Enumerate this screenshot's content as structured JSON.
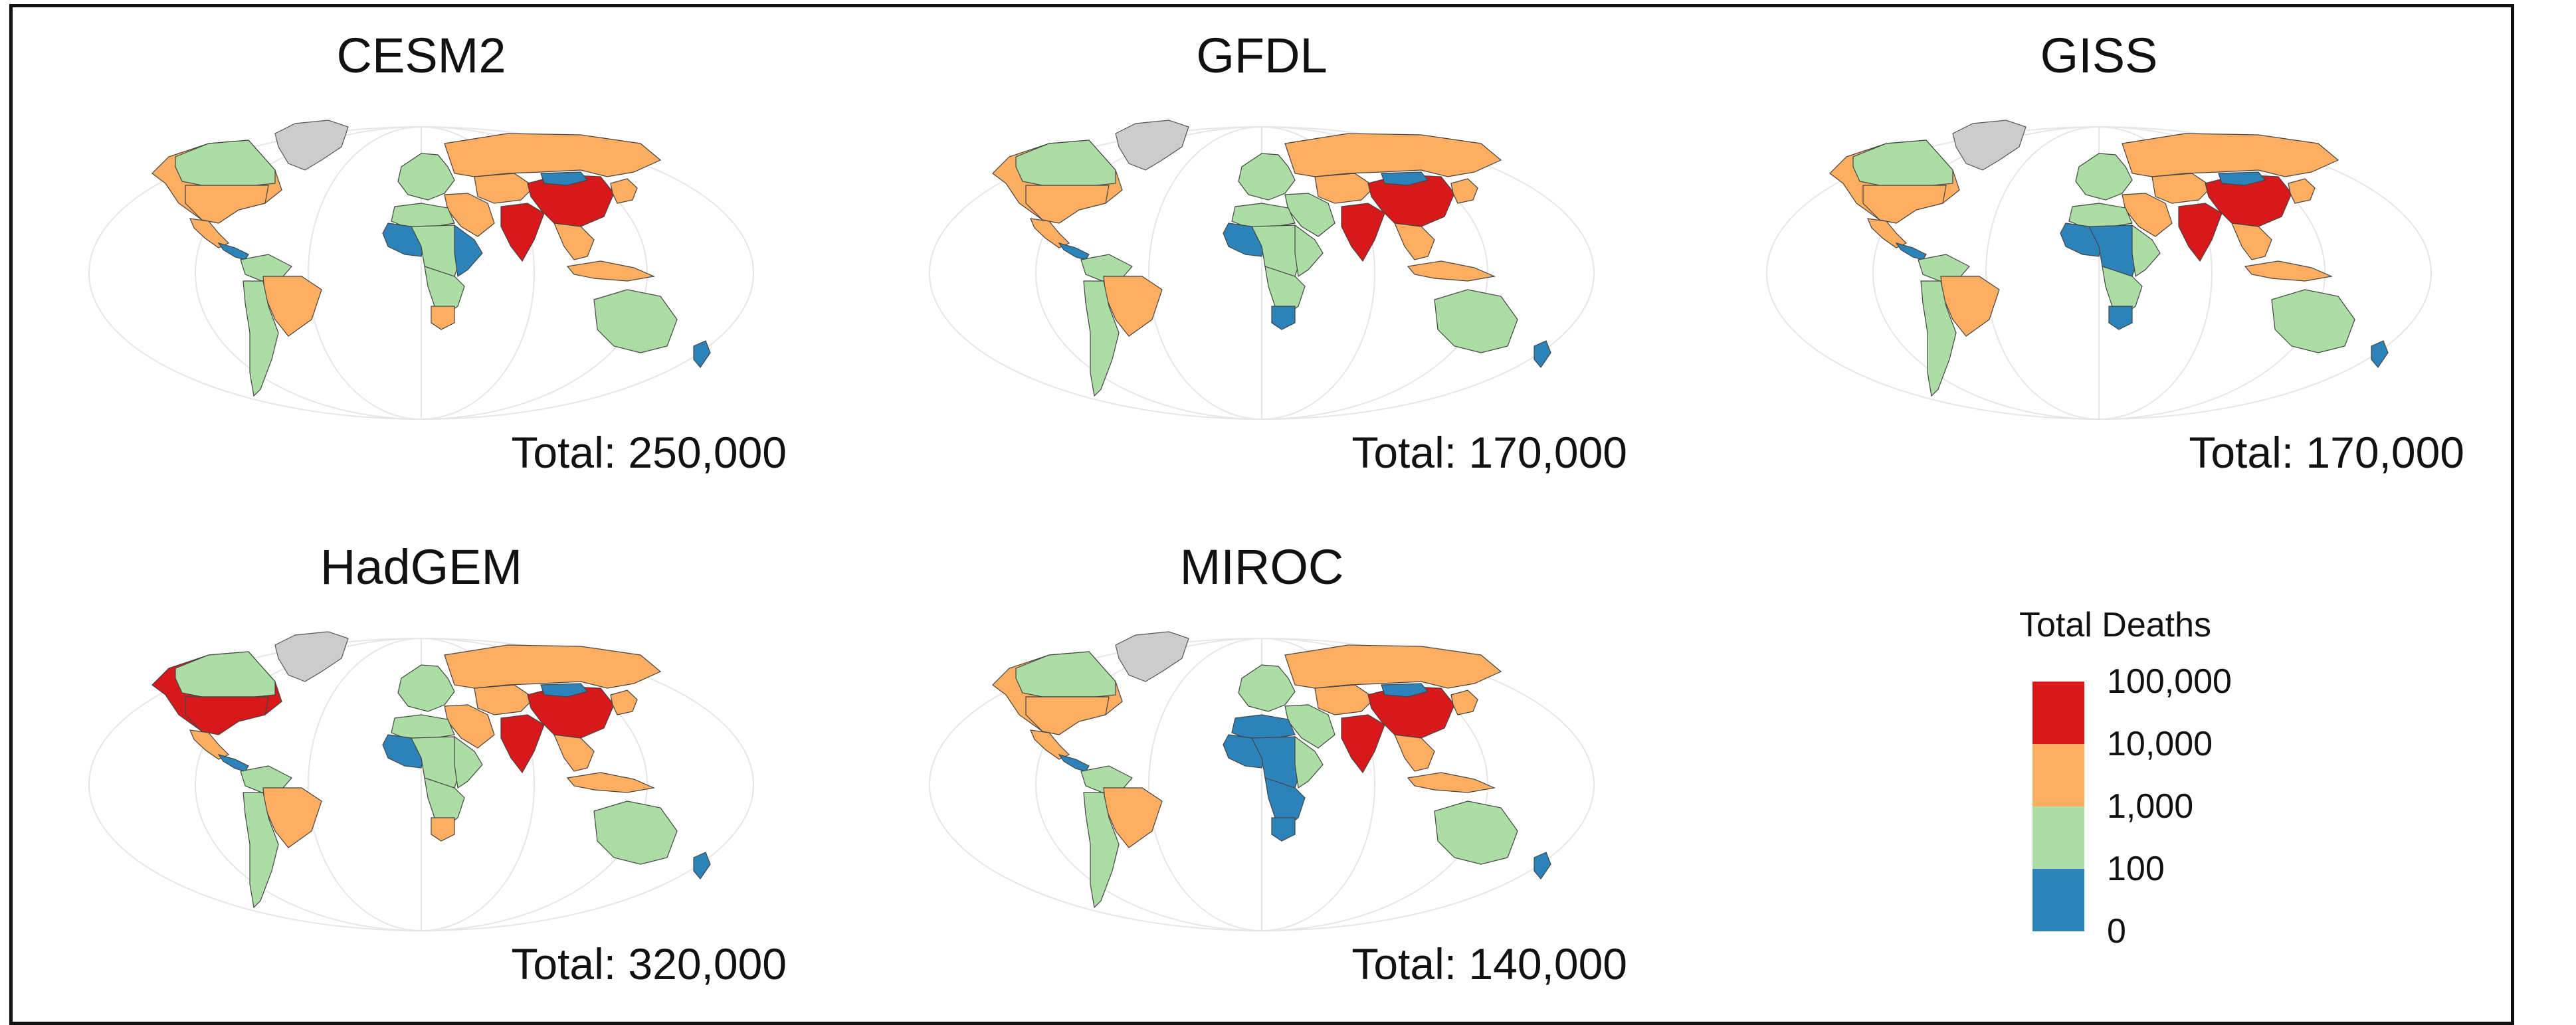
{
  "colors": {
    "c100000": "#d7191c",
    "c10000": "#fdae61",
    "c1000": "#abdda4",
    "c100": "#2b83ba",
    "no_data": "#cccccc",
    "graticule": "#e6e6e6"
  },
  "panels": [
    {
      "title": "CESM2",
      "total": "Total: 250,000",
      "categories": {
        "north_america": "c10000",
        "canada": "c1000",
        "usa_alaska": "c10000",
        "mexico": "c10000",
        "central_america": "c100",
        "south_america_north": "c1000",
        "brazil": "c10000",
        "south_america_south": "c1000",
        "europe": "c1000",
        "russia": "c10000",
        "middle_east": "c10000",
        "africa_north": "c1000",
        "africa_west": "c100",
        "africa_central": "c1000",
        "africa_east": "c100",
        "africa_south": "c1000",
        "south_africa": "c10000",
        "central_asia": "c10000",
        "india": "c100000",
        "china": "c100000",
        "mongolia": "c100",
        "southeast_asia": "c10000",
        "indonesia": "c10000",
        "japan_korea": "c10000",
        "australia": "c1000",
        "new_zealand": "c100"
      }
    },
    {
      "title": "GFDL",
      "total": "Total: 170,000",
      "categories": {
        "north_america": "c10000",
        "canada": "c1000",
        "usa_alaska": "c10000",
        "mexico": "c10000",
        "central_america": "c100",
        "south_america_north": "c1000",
        "brazil": "c10000",
        "south_america_south": "c1000",
        "europe": "c1000",
        "russia": "c10000",
        "middle_east": "c1000",
        "africa_north": "c1000",
        "africa_west": "c100",
        "africa_central": "c1000",
        "africa_east": "c1000",
        "africa_south": "c1000",
        "south_africa": "c100",
        "central_asia": "c10000",
        "india": "c100000",
        "china": "c100000",
        "mongolia": "c100",
        "southeast_asia": "c10000",
        "indonesia": "c10000",
        "japan_korea": "c10000",
        "australia": "c1000",
        "new_zealand": "c100"
      }
    },
    {
      "title": "GISS",
      "total": "Total: 170,000",
      "categories": {
        "north_america": "c10000",
        "canada": "c1000",
        "usa_alaska": "c10000",
        "mexico": "c10000",
        "central_america": "c100",
        "south_america_north": "c1000",
        "brazil": "c10000",
        "south_america_south": "c1000",
        "europe": "c1000",
        "russia": "c10000",
        "middle_east": "c10000",
        "africa_north": "c1000",
        "africa_west": "c100",
        "africa_central": "c100",
        "africa_east": "c1000",
        "africa_south": "c1000",
        "south_africa": "c100",
        "central_asia": "c10000",
        "india": "c100000",
        "china": "c100000",
        "mongolia": "c100",
        "southeast_asia": "c10000",
        "indonesia": "c10000",
        "japan_korea": "c10000",
        "australia": "c1000",
        "new_zealand": "c100"
      }
    },
    {
      "title": "HadGEM",
      "total": "Total: 320,000",
      "categories": {
        "north_america": "c100000",
        "canada": "c1000",
        "usa_alaska": "c100000",
        "mexico": "c10000",
        "central_america": "c100",
        "south_america_north": "c1000",
        "brazil": "c10000",
        "south_america_south": "c1000",
        "europe": "c1000",
        "russia": "c10000",
        "middle_east": "c10000",
        "africa_north": "c1000",
        "africa_west": "c100",
        "africa_central": "c1000",
        "africa_east": "c1000",
        "africa_south": "c1000",
        "south_africa": "c10000",
        "central_asia": "c10000",
        "india": "c100000",
        "china": "c100000",
        "mongolia": "c100",
        "southeast_asia": "c10000",
        "indonesia": "c10000",
        "japan_korea": "c10000",
        "australia": "c1000",
        "new_zealand": "c100"
      }
    },
    {
      "title": "MIROC",
      "total": "Total: 140,000",
      "categories": {
        "north_america": "c10000",
        "canada": "c1000",
        "usa_alaska": "c10000",
        "mexico": "c10000",
        "central_america": "c100",
        "south_america_north": "c1000",
        "brazil": "c10000",
        "south_america_south": "c1000",
        "europe": "c1000",
        "russia": "c10000",
        "middle_east": "c1000",
        "africa_north": "c100",
        "africa_west": "c100",
        "africa_central": "c100",
        "africa_east": "c1000",
        "africa_south": "c100",
        "south_africa": "c100",
        "central_asia": "c10000",
        "india": "c100000",
        "china": "c100000",
        "mongolia": "c100",
        "southeast_asia": "c10000",
        "indonesia": "c10000",
        "japan_korea": "c10000",
        "australia": "c1000",
        "new_zealand": "c100"
      }
    }
  ],
  "legend": {
    "title": "Total Deaths",
    "ticks": [
      "100,000",
      "10,000",
      "1,000",
      "100",
      "0"
    ],
    "swatch_colors": [
      "#d7191c",
      "#fdae61",
      "#abdda4",
      "#2b83ba"
    ]
  }
}
